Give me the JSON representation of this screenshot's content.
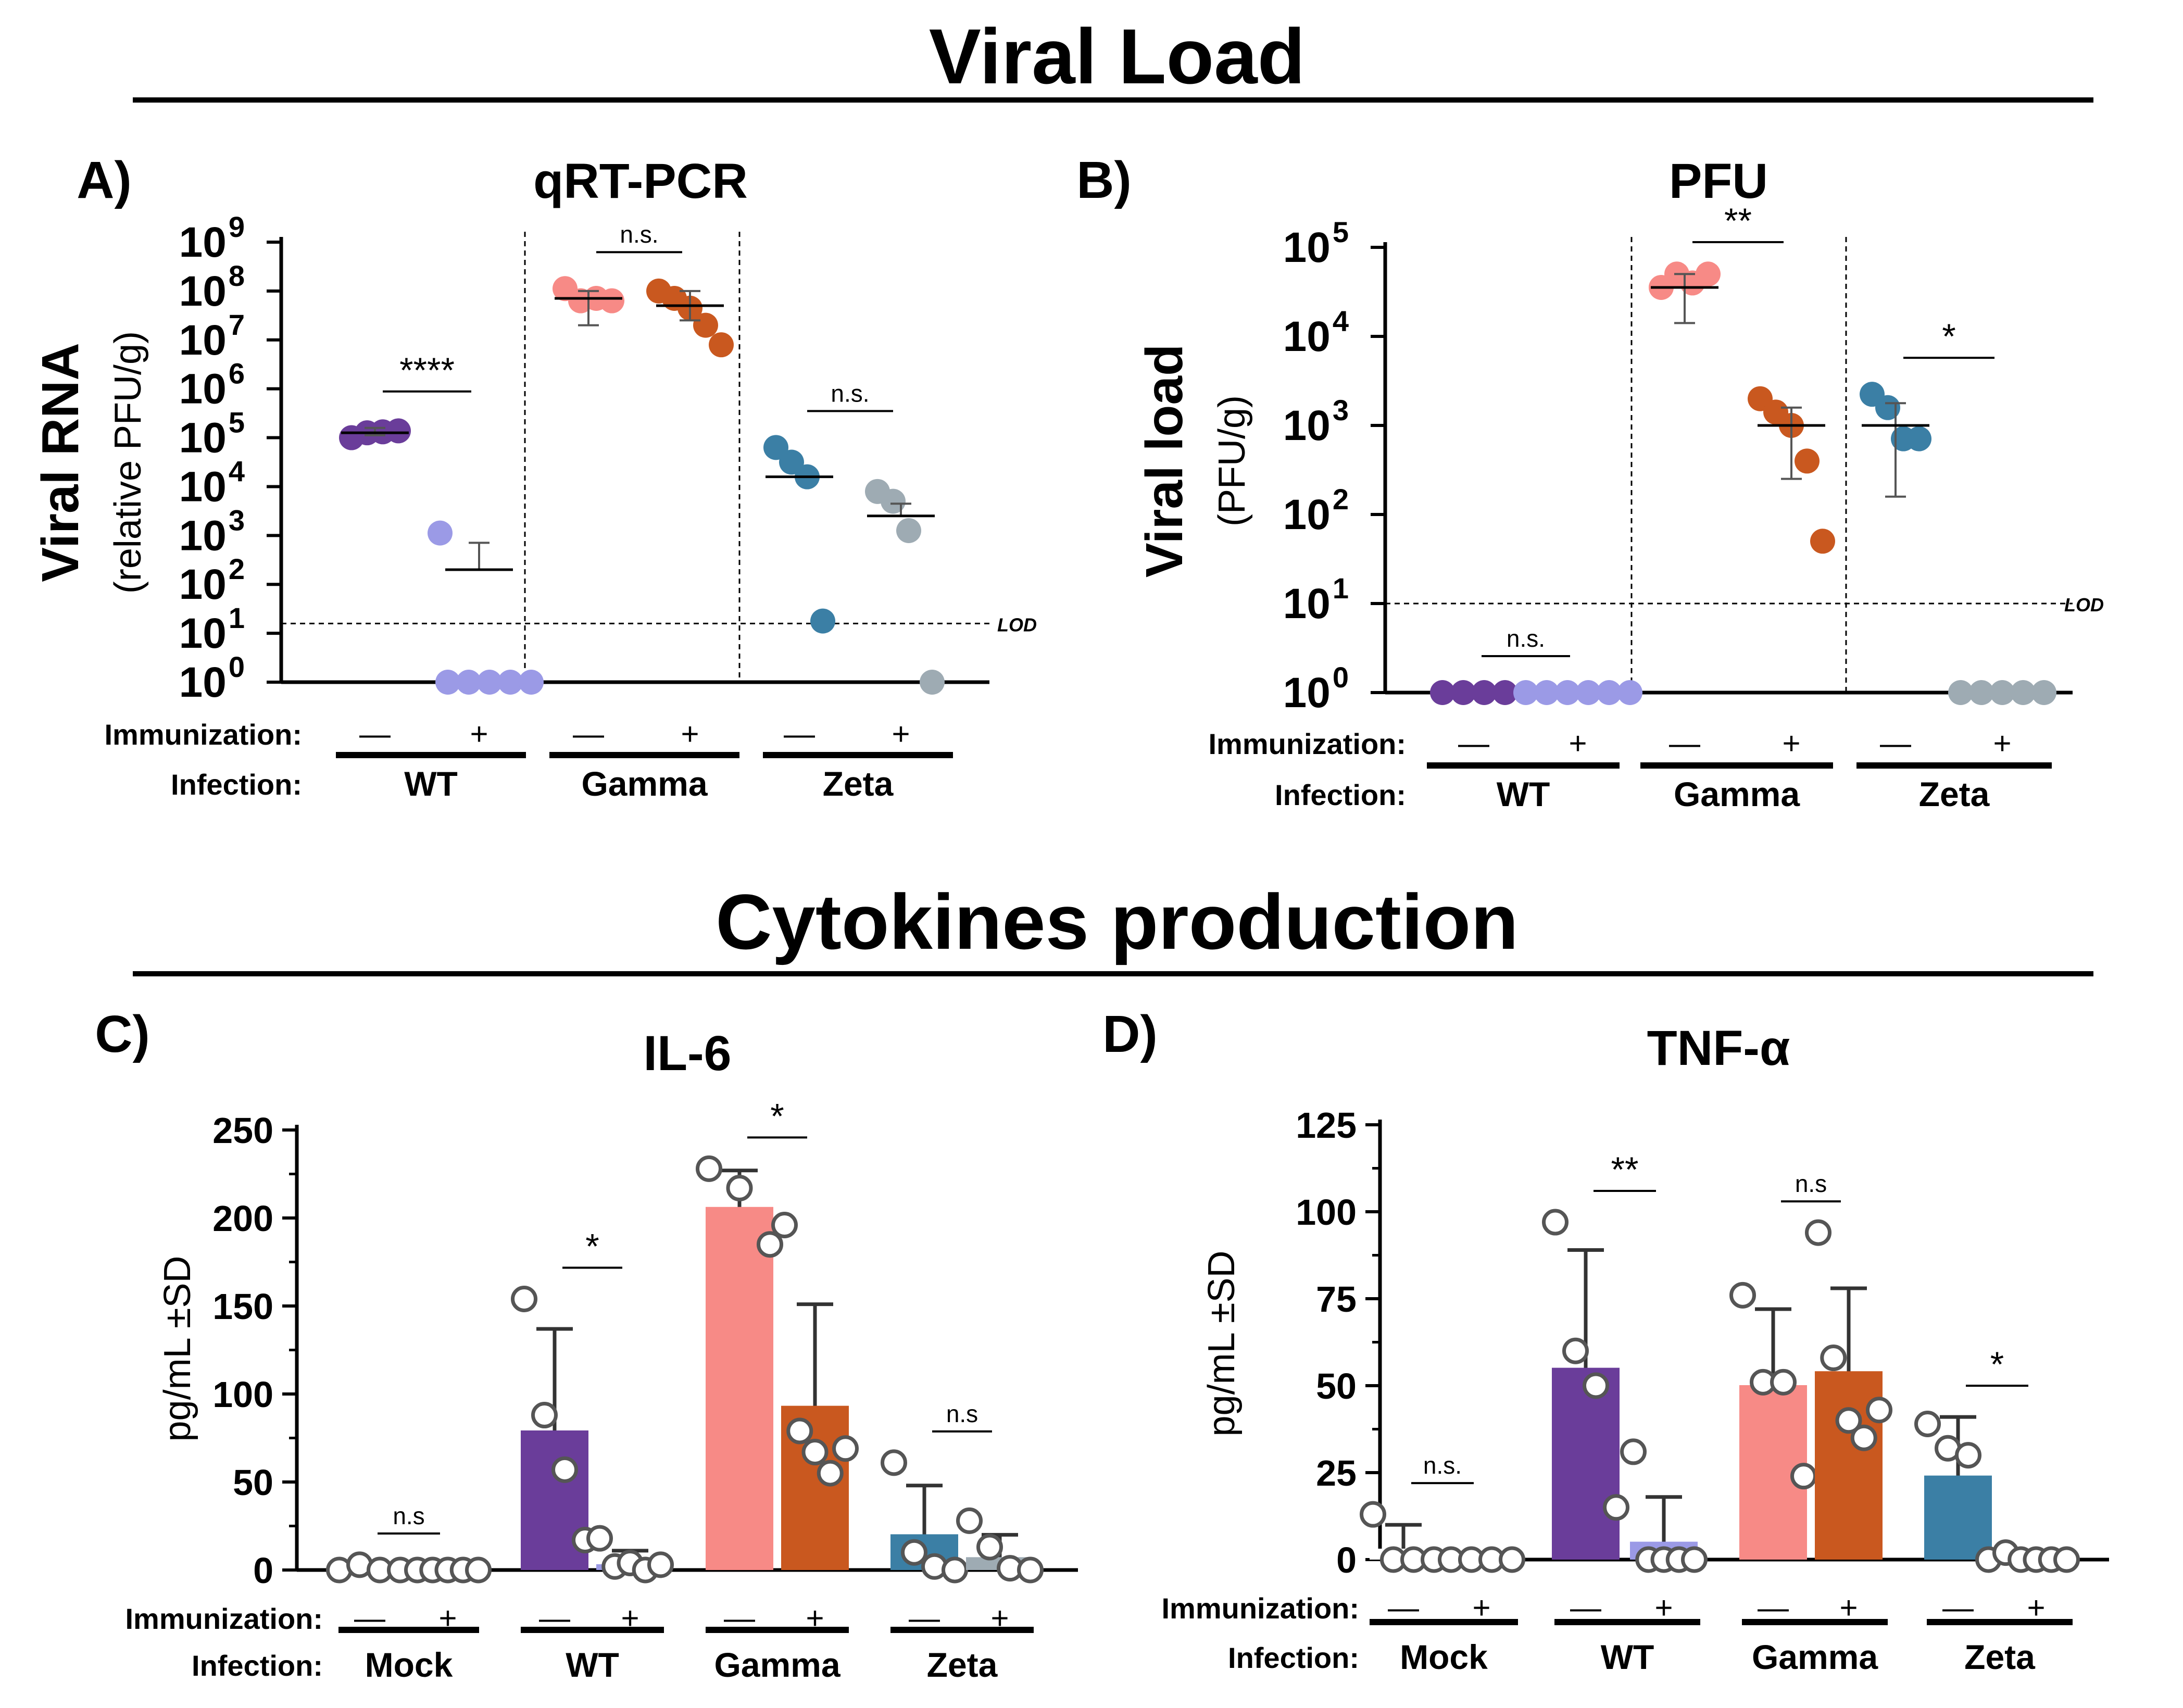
{
  "figure": {
    "section_top_title": "Viral Load",
    "section_bottom_title": "Cytokines production",
    "row_labels": {
      "immunization": "Immunization:",
      "infection": "Infection:"
    },
    "lod_label": "LOD"
  },
  "colors": {
    "wt_neg": "#6a3d9a",
    "wt_pos": "#9b9ae6",
    "gamma_neg": "#f78a86",
    "gamma_pos": "#c9581f",
    "zeta_neg": "#3b7fa5",
    "zeta_pos": "#9eabb3"
  },
  "chart_data": [
    {
      "id": "A",
      "panel_label": "A)",
      "type": "scatter",
      "title": "qRT-PCR",
      "ylabel": "Viral RNA",
      "ylabel_sub": "(relative PFU/g)",
      "yscale": "log",
      "ylim": [
        0,
        9
      ],
      "yticks": [
        {
          "b": "10",
          "e": "0"
        },
        {
          "b": "10",
          "e": "1"
        },
        {
          "b": "10",
          "e": "2"
        },
        {
          "b": "10",
          "e": "3"
        },
        {
          "b": "10",
          "e": "4"
        },
        {
          "b": "10",
          "e": "5"
        },
        {
          "b": "10",
          "e": "6"
        },
        {
          "b": "10",
          "e": "7"
        },
        {
          "b": "10",
          "e": "8"
        },
        {
          "b": "10",
          "e": "9"
        }
      ],
      "lod": 1.2,
      "infections": [
        "WT",
        "Gamma",
        "Zeta"
      ],
      "immunization": [
        "—",
        "+",
        "—",
        "+",
        "—",
        "+"
      ],
      "series": [
        {
          "name": "WT −",
          "color": "wt_neg",
          "points": [
            5.0,
            5.1,
            5.12,
            5.14
          ],
          "mean": 5.1,
          "sd": [
            5.05,
            5.2
          ]
        },
        {
          "name": "WT +",
          "color": "wt_pos",
          "points": [
            3.05,
            0,
            0,
            0,
            0,
            0
          ],
          "mean": 2.3,
          "sd": [
            2.3,
            2.85
          ]
        },
        {
          "name": "Gamma −",
          "color": "gamma_neg",
          "points": [
            8.05,
            7.8,
            7.85,
            7.8
          ],
          "mean": 7.85,
          "sd": [
            7.3,
            8.0
          ]
        },
        {
          "name": "Gamma +",
          "color": "gamma_pos",
          "points": [
            8.0,
            7.85,
            7.65,
            7.3,
            6.9
          ],
          "mean": 7.7,
          "sd": [
            7.4,
            8.0
          ]
        },
        {
          "name": "Zeta −",
          "color": "zeta_neg",
          "points": [
            4.8,
            4.5,
            4.2,
            1.25
          ],
          "mean": 4.2,
          "sd": [
            4.2,
            4.2
          ]
        },
        {
          "name": "Zeta +",
          "color": "zeta_pos",
          "points": [
            3.9,
            3.7,
            3.1,
            0
          ],
          "mean": 3.4,
          "sd": [
            3.4,
            3.65
          ]
        }
      ],
      "comparisons": [
        {
          "group": 0,
          "label": "****"
        },
        {
          "group": 1,
          "label": "n.s."
        },
        {
          "group": 2,
          "label": "n.s."
        }
      ]
    },
    {
      "id": "B",
      "panel_label": "B)",
      "type": "scatter",
      "title": "PFU",
      "ylabel": "Viral load",
      "ylabel_sub": "(PFU/g)",
      "yscale": "log",
      "ylim": [
        0,
        5
      ],
      "yticks": [
        {
          "b": "10",
          "e": "0"
        },
        {
          "b": "10",
          "e": "1"
        },
        {
          "b": "10",
          "e": "2"
        },
        {
          "b": "10",
          "e": "3"
        },
        {
          "b": "10",
          "e": "4"
        },
        {
          "b": "10",
          "e": "5"
        }
      ],
      "lod": 1.0,
      "infections": [
        "WT",
        "Gamma",
        "Zeta"
      ],
      "immunization": [
        "—",
        "+",
        "—",
        "+",
        "—",
        "+"
      ],
      "series": [
        {
          "name": "WT −",
          "color": "wt_neg",
          "points": [
            0,
            0,
            0,
            0
          ],
          "mean": null,
          "sd": null
        },
        {
          "name": "WT +",
          "color": "wt_pos",
          "points": [
            0,
            0,
            0,
            0,
            0,
            0
          ],
          "mean": null,
          "sd": null
        },
        {
          "name": "Gamma −",
          "color": "gamma_neg",
          "points": [
            4.55,
            4.7,
            4.6,
            4.7
          ],
          "mean": 4.55,
          "sd": [
            4.15,
            4.7
          ]
        },
        {
          "name": "Gamma +",
          "color": "gamma_pos",
          "points": [
            3.3,
            3.15,
            3.0,
            2.6,
            1.7
          ],
          "mean": 3.0,
          "sd": [
            2.4,
            3.2
          ]
        },
        {
          "name": "Zeta −",
          "color": "zeta_neg",
          "points": [
            3.35,
            3.2,
            2.85,
            2.85
          ],
          "mean": 3.0,
          "sd": [
            2.2,
            3.25
          ]
        },
        {
          "name": "Zeta +",
          "color": "zeta_pos",
          "points": [
            0,
            0,
            0,
            0,
            0
          ],
          "mean": null,
          "sd": null
        }
      ],
      "comparisons": [
        {
          "group": 0,
          "label": "n.s."
        },
        {
          "group": 1,
          "label": "**"
        },
        {
          "group": 2,
          "label": "*"
        }
      ]
    },
    {
      "id": "C",
      "panel_label": "C)",
      "type": "bar",
      "title": "IL-6",
      "ylabel": "pg/mL ±SD",
      "ylim": [
        0,
        250
      ],
      "yticks": [
        0,
        50,
        100,
        150,
        200,
        250
      ],
      "infections": [
        "Mock",
        "WT",
        "Gamma",
        "Zeta"
      ],
      "immunization": [
        "—",
        "+",
        "—",
        "+",
        "—",
        "+",
        "—",
        "+"
      ],
      "series": [
        {
          "name": "Mock −",
          "color": "none",
          "value": 1,
          "sd": 0,
          "points": [
            0,
            3,
            0,
            0
          ]
        },
        {
          "name": "Mock +",
          "color": "none",
          "value": 0,
          "sd": 0,
          "points": [
            0,
            0,
            0,
            0,
            0
          ]
        },
        {
          "name": "WT −",
          "color": "wt_neg",
          "value": 79,
          "sd": 58,
          "points": [
            154,
            88,
            57,
            17
          ]
        },
        {
          "name": "WT +",
          "color": "wt_pos",
          "value": 3,
          "sd": 8,
          "points": [
            18,
            2,
            4,
            0,
            3
          ]
        },
        {
          "name": "Gamma −",
          "color": "gamma_neg",
          "value": 206,
          "sd": 21,
          "points": [
            228,
            217,
            185
          ]
        },
        {
          "name": "Gamma +",
          "color": "gamma_pos",
          "value": 93,
          "sd": 58,
          "points": [
            196,
            79,
            67,
            55,
            69
          ]
        },
        {
          "name": "Zeta −",
          "color": "zeta_neg",
          "value": 20,
          "sd": 28,
          "points": [
            61,
            10,
            2,
            0
          ]
        },
        {
          "name": "Zeta +",
          "color": "zeta_pos",
          "value": 7,
          "sd": 13,
          "points": [
            28,
            13,
            1,
            0
          ]
        }
      ],
      "comparisons": [
        {
          "group": 0,
          "label": "n.s"
        },
        {
          "group": 1,
          "label": "*"
        },
        {
          "group": 2,
          "label": "*"
        },
        {
          "group": 3,
          "label": "n.s"
        }
      ]
    },
    {
      "id": "D",
      "panel_label": "D)",
      "type": "bar",
      "title": "TNF-α",
      "ylabel": "pg/mL ±SD",
      "ylim": [
        0,
        125
      ],
      "yticks": [
        0,
        25,
        50,
        75,
        100,
        125
      ],
      "infections": [
        "Mock",
        "WT",
        "Gamma",
        "Zeta"
      ],
      "immunization": [
        "—",
        "+",
        "—",
        "+",
        "—",
        "+",
        "—",
        "+"
      ],
      "series": [
        {
          "name": "Mock −",
          "color": "none",
          "value": 3,
          "sd": 7,
          "points": [
            13,
            0,
            0,
            0
          ]
        },
        {
          "name": "Mock +",
          "color": "none",
          "value": 0,
          "sd": 0,
          "points": [
            0,
            0,
            0,
            0
          ]
        },
        {
          "name": "WT −",
          "color": "wt_neg",
          "value": 55,
          "sd": 34,
          "points": [
            97,
            60,
            50,
            15
          ]
        },
        {
          "name": "WT +",
          "color": "wt_pos",
          "value": 5,
          "sd": 13,
          "points": [
            31,
            0,
            0,
            0,
            0
          ]
        },
        {
          "name": "Gamma −",
          "color": "gamma_neg",
          "value": 50,
          "sd": 22,
          "points": [
            76,
            51,
            51,
            24
          ]
        },
        {
          "name": "Gamma +",
          "color": "gamma_pos",
          "value": 54,
          "sd": 24,
          "points": [
            94,
            58,
            40,
            35,
            43
          ]
        },
        {
          "name": "Zeta −",
          "color": "zeta_neg",
          "value": 24,
          "sd": 17,
          "points": [
            39,
            32,
            30,
            0
          ]
        },
        {
          "name": "Zeta +",
          "color": "zeta_pos",
          "value": 0,
          "sd": 0,
          "points": [
            2,
            0,
            0,
            0,
            0
          ]
        }
      ],
      "comparisons": [
        {
          "group": 0,
          "label": "n.s."
        },
        {
          "group": 1,
          "label": "**"
        },
        {
          "group": 2,
          "label": "n.s"
        },
        {
          "group": 3,
          "label": "*"
        }
      ]
    }
  ]
}
